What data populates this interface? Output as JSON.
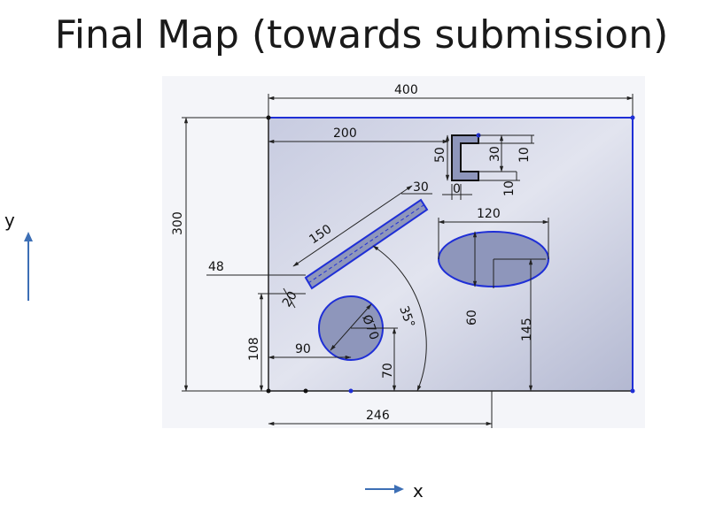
{
  "title": "Final Map (towards submission)",
  "axes": {
    "y_label": "y",
    "x_label": "x"
  },
  "dimensions": {
    "width_400": "400",
    "d_200": "200",
    "height_300": "300",
    "d_50": "50",
    "d_30_top": "30",
    "d_10_right": "10",
    "d_10_bottom": "10",
    "d_0": "0",
    "d_30_slot": "30",
    "d_150": "150",
    "d_48": "48",
    "d_20": "20",
    "d_120": "120",
    "d_60": "60",
    "d_145": "145",
    "angle": "35°",
    "dia_70": "Ø70",
    "d_90": "90",
    "d_108": "108",
    "d_70": "70",
    "d_246": "246"
  },
  "colors": {
    "plate": "#aeb4cc",
    "feature_fill": "#8e96bb",
    "outline_blue": "#1f2fd6",
    "dim_line": "#222222",
    "arrow": "#3d6fb5"
  }
}
